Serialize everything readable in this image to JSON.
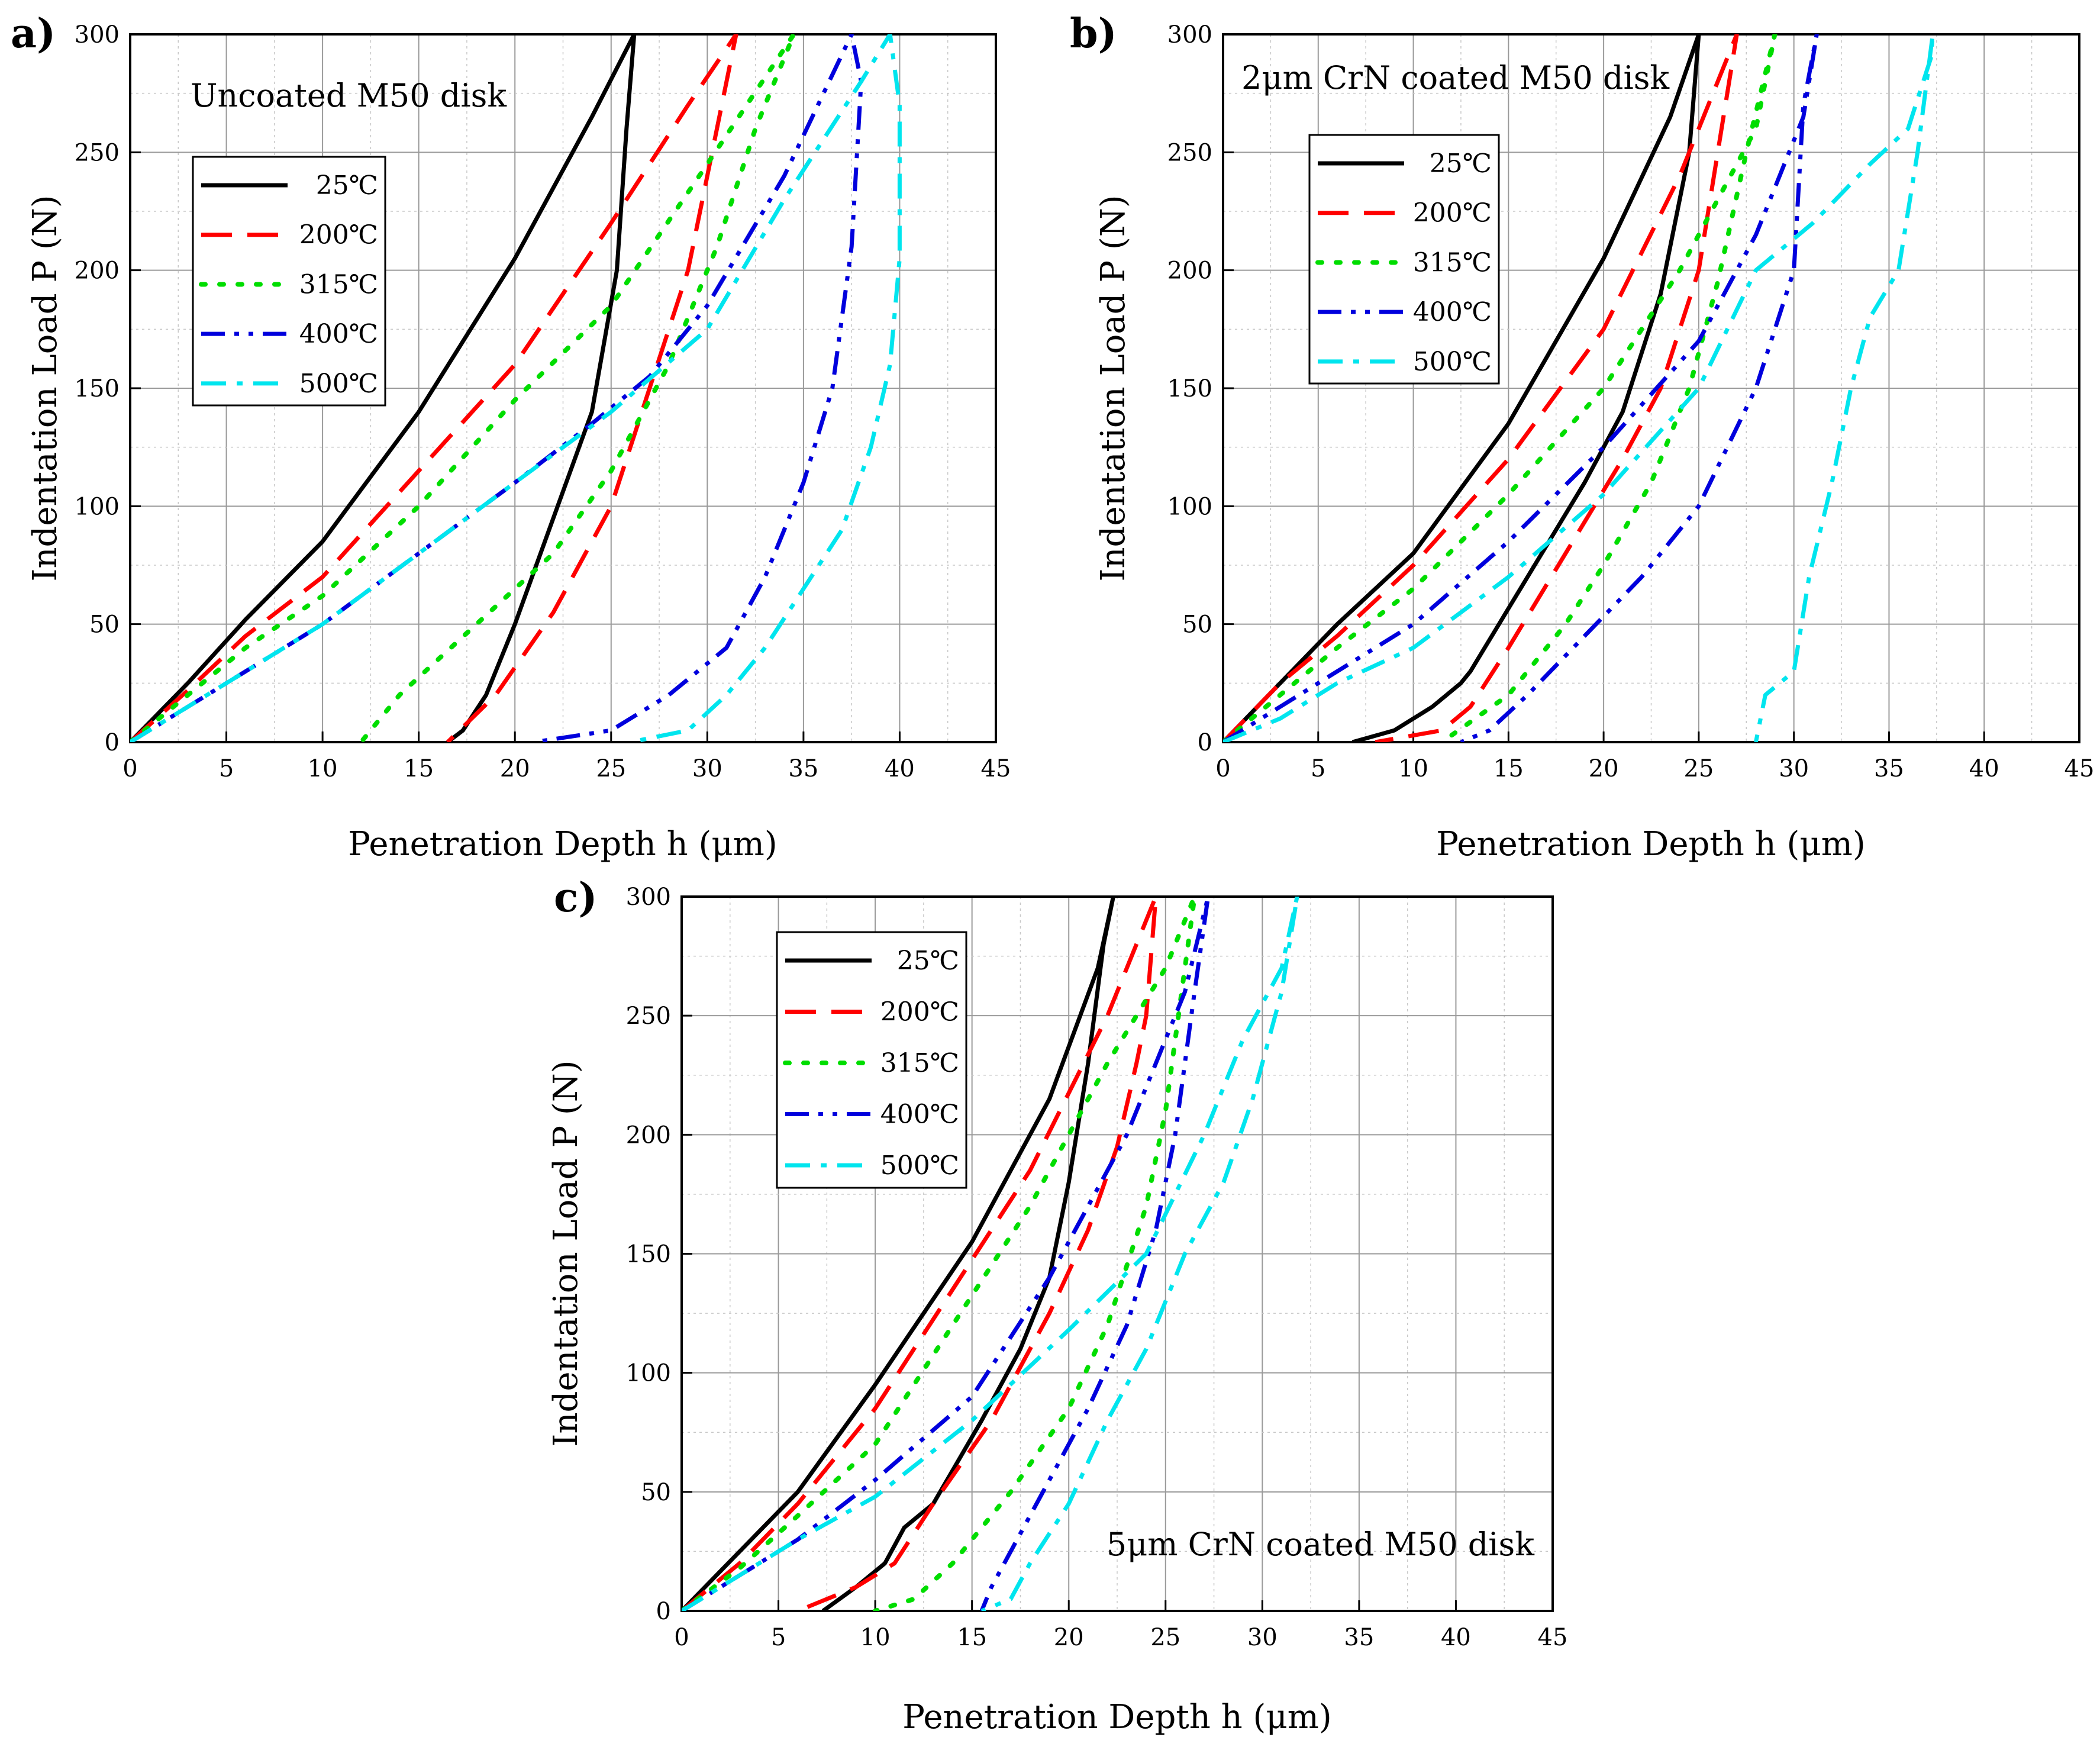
{
  "figure": {
    "colors": {
      "25℃": "#000000",
      "200℃": "#ff0000",
      "315℃": "#00dd00",
      "400℃": "#0000dd",
      "500℃": "#00e5ee"
    }
  },
  "chart_data": [
    {
      "type": "line",
      "panel": "a)",
      "title": "Uncoated M50 disk",
      "xlabel": "Penetration Depth h (μm)",
      "ylabel": "Indentation Load P (N)",
      "xlim": [
        0,
        45
      ],
      "ylim": [
        0,
        300
      ],
      "xticks": [
        "0",
        "5",
        "10",
        "15",
        "20",
        "25",
        "30",
        "35",
        "40",
        "45"
      ],
      "yticks": [
        "0",
        "50",
        "100",
        "150",
        "200",
        "250",
        "300"
      ],
      "grid": true,
      "legend_position": "upper-left",
      "series": [
        {
          "name": "25℃",
          "style": "solid",
          "x": [
            0,
            3,
            6,
            10,
            15,
            20,
            24,
            26.2,
            25.8,
            25.3,
            24,
            22,
            20,
            18.5,
            17.3,
            16.5
          ],
          "y": [
            0,
            25,
            52,
            85,
            140,
            205,
            265,
            300,
            260,
            200,
            140,
            95,
            50,
            20,
            5,
            0
          ]
        },
        {
          "name": "200℃",
          "style": "dashed",
          "x": [
            0,
            3,
            6,
            10,
            15,
            20,
            25,
            29,
            31.5,
            30.5,
            29,
            27,
            25,
            22,
            19,
            16.5
          ],
          "y": [
            0,
            22,
            45,
            70,
            115,
            160,
            220,
            270,
            300,
            260,
            200,
            150,
            100,
            55,
            20,
            0
          ]
        },
        {
          "name": "315℃",
          "style": "dotted",
          "x": [
            0,
            3,
            6,
            10,
            15,
            20,
            25,
            30,
            34.5,
            32.5,
            30.5,
            28,
            25,
            22,
            18,
            14,
            12
          ],
          "y": [
            0,
            20,
            40,
            62,
            100,
            145,
            185,
            245,
            300,
            260,
            210,
            160,
            115,
            80,
            50,
            20,
            0
          ]
        },
        {
          "name": "400℃",
          "style": "dashdotdot",
          "x": [
            0,
            3,
            6,
            10,
            15,
            20,
            24,
            27,
            30,
            34,
            37.5,
            38,
            37.5,
            36.5,
            35,
            33,
            31,
            28,
            25,
            21
          ],
          "y": [
            0,
            15,
            30,
            50,
            80,
            110,
            135,
            155,
            185,
            240,
            300,
            280,
            210,
            150,
            110,
            70,
            40,
            20,
            5,
            0
          ]
        },
        {
          "name": "500℃",
          "style": "dashdot",
          "x": [
            0,
            3,
            6,
            10,
            15,
            20,
            25,
            30,
            34,
            38,
            39.5,
            40,
            40,
            39.5,
            38.5,
            37,
            35,
            33,
            31,
            29,
            26
          ],
          "y": [
            0,
            15,
            30,
            50,
            80,
            110,
            140,
            175,
            230,
            280,
            300,
            270,
            205,
            160,
            125,
            90,
            65,
            40,
            20,
            5,
            0
          ]
        }
      ]
    },
    {
      "type": "line",
      "panel": "b)",
      "title": "2μm CrN coated M50 disk",
      "xlabel": "Penetration Depth h (μm)",
      "ylabel": "Indentation Load P (N)",
      "xlim": [
        0,
        45
      ],
      "ylim": [
        0,
        300
      ],
      "xticks": [
        "0",
        "5",
        "10",
        "15",
        "20",
        "25",
        "30",
        "35",
        "40",
        "45"
      ],
      "yticks": [
        "0",
        "50",
        "100",
        "150",
        "200",
        "250",
        "300"
      ],
      "grid": true,
      "legend_position": "upper-left",
      "series": [
        {
          "name": "25℃",
          "style": "solid",
          "x": [
            0,
            3,
            6,
            10,
            15,
            20,
            23.5,
            25,
            24.5,
            23,
            21,
            19,
            16,
            13,
            12.5,
            11,
            9,
            6.8
          ],
          "y": [
            0,
            25,
            50,
            80,
            135,
            205,
            265,
            300,
            250,
            190,
            140,
            110,
            70,
            30,
            25,
            15,
            5,
            0
          ]
        },
        {
          "name": "200℃",
          "style": "dashed",
          "x": [
            0,
            3,
            6,
            10,
            15,
            20,
            24,
            27,
            26,
            25,
            23,
            21,
            18,
            15,
            13,
            11.5,
            8
          ],
          "y": [
            0,
            25,
            45,
            75,
            120,
            175,
            240,
            300,
            250,
            200,
            150,
            120,
            80,
            40,
            15,
            5,
            0
          ]
        },
        {
          "name": "315℃",
          "style": "dotted",
          "x": [
            0,
            3,
            6,
            10,
            15,
            20,
            24,
            28,
            29,
            27.5,
            26,
            24.5,
            22.5,
            20,
            18,
            15,
            11.5
          ],
          "y": [
            0,
            20,
            40,
            65,
            105,
            150,
            200,
            260,
            300,
            250,
            195,
            150,
            110,
            75,
            50,
            20,
            0
          ]
        },
        {
          "name": "400℃",
          "style": "dashdotdot",
          "x": [
            0,
            3,
            6,
            10,
            15,
            20,
            25,
            28,
            30.5,
            31.2,
            30.5,
            30,
            28,
            25,
            22,
            19,
            16,
            14,
            12.5
          ],
          "y": [
            0,
            15,
            30,
            50,
            85,
            125,
            170,
            215,
            265,
            300,
            270,
            200,
            150,
            100,
            70,
            45,
            20,
            5,
            0
          ]
        },
        {
          "name": "500℃",
          "style": "dashdot",
          "x": [
            0,
            3,
            6,
            10,
            15,
            20,
            25,
            28,
            31,
            34,
            36,
            37.2,
            37.3,
            36.5,
            35.5,
            34,
            33,
            32,
            30.8,
            30,
            28.5,
            28
          ],
          "y": [
            0,
            10,
            25,
            40,
            70,
            105,
            150,
            200,
            220,
            245,
            260,
            290,
            300,
            250,
            200,
            180,
            150,
            110,
            70,
            30,
            20,
            0
          ]
        }
      ]
    },
    {
      "type": "line",
      "panel": "c)",
      "title": "5μm CrN coated M50 disk",
      "xlabel": "Penetration Depth h (μm)",
      "ylabel": "Indentation Load P (N)",
      "xlim": [
        0,
        45
      ],
      "ylim": [
        0,
        300
      ],
      "xticks": [
        "0",
        "5",
        "10",
        "15",
        "20",
        "25",
        "30",
        "35",
        "40",
        "45"
      ],
      "yticks": [
        "0",
        "50",
        "100",
        "150",
        "200",
        "250",
        "300"
      ],
      "grid": true,
      "legend_position": "upper-left",
      "series": [
        {
          "name": "25℃",
          "style": "solid",
          "x": [
            0,
            3,
            6,
            10,
            15,
            19,
            21.5,
            22.3,
            21.8,
            21,
            20,
            19,
            17.5,
            15.5,
            13,
            11.5,
            10.5,
            9,
            7.3
          ],
          "y": [
            0,
            25,
            50,
            95,
            155,
            215,
            270,
            300,
            280,
            230,
            180,
            140,
            110,
            80,
            45,
            35,
            20,
            10,
            0
          ]
        },
        {
          "name": "200℃",
          "style": "dashed",
          "x": [
            0,
            3,
            6,
            10,
            14,
            18,
            22,
            24.5,
            24,
            23.5,
            22.5,
            21,
            19,
            16,
            13,
            11,
            9,
            6
          ],
          "y": [
            0,
            20,
            45,
            85,
            135,
            185,
            250,
            300,
            250,
            230,
            195,
            160,
            125,
            80,
            45,
            20,
            10,
            0
          ]
        },
        {
          "name": "315℃",
          "style": "dotted",
          "x": [
            0,
            3,
            6,
            10,
            14,
            18,
            22,
            25,
            26.5,
            26,
            25,
            24,
            22,
            20,
            17,
            14,
            12,
            10
          ],
          "y": [
            0,
            18,
            40,
            70,
            120,
            170,
            230,
            270,
            300,
            270,
            210,
            170,
            120,
            85,
            50,
            20,
            5,
            0
          ]
        },
        {
          "name": "400℃",
          "style": "dashdotdot",
          "x": [
            0,
            3,
            6,
            10,
            15,
            19,
            23,
            26,
            27.2,
            26.5,
            25.5,
            24.5,
            23,
            21,
            19,
            17,
            16,
            15.5
          ],
          "y": [
            0,
            15,
            30,
            55,
            90,
            140,
            200,
            260,
            300,
            260,
            200,
            160,
            120,
            85,
            55,
            25,
            10,
            0
          ]
        },
        {
          "name": "500℃",
          "style": "dashdot",
          "x": [
            0,
            3,
            6,
            10,
            15,
            20,
            24,
            27,
            29,
            31,
            31.8,
            31,
            29.5,
            28,
            26,
            24,
            22,
            20,
            18,
            17,
            15.5
          ],
          "y": [
            0,
            15,
            30,
            48,
            80,
            118,
            150,
            200,
            240,
            270,
            300,
            260,
            215,
            180,
            150,
            110,
            80,
            45,
            20,
            5,
            0
          ]
        }
      ]
    }
  ]
}
